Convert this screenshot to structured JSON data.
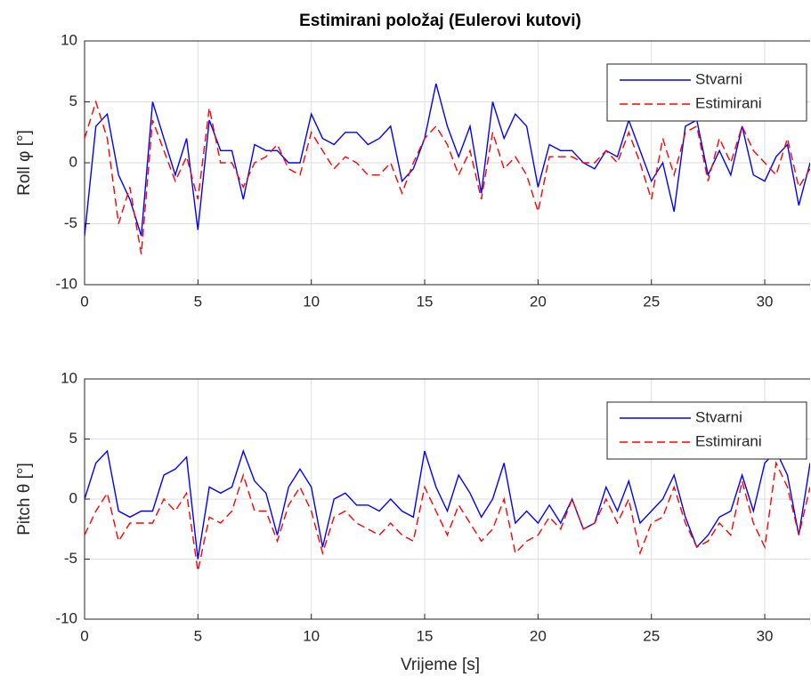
{
  "chart_data": [
    {
      "type": "line",
      "title": "Estimirani položaj (Eulerovi kutovi)",
      "y_label": "Roll φ [°]",
      "x": [
        0,
        0.5,
        1,
        1.5,
        2,
        2.5,
        3,
        3.5,
        4,
        4.5,
        5,
        5.5,
        6,
        6.5,
        7,
        7.5,
        8,
        8.5,
        9,
        9.5,
        10,
        10.5,
        11,
        11.5,
        12,
        12.5,
        13,
        13.5,
        14,
        14.5,
        15,
        15.5,
        16,
        16.5,
        17,
        17.5,
        18,
        18.5,
        19,
        19.5,
        20,
        20.5,
        21,
        21.5,
        22,
        22.5,
        23,
        23.5,
        24,
        24.5,
        25,
        25.5,
        26,
        26.5,
        27,
        27.5,
        28,
        28.5,
        29,
        29.5,
        30,
        30.5,
        31,
        31.5,
        32
      ],
      "series": [
        {
          "name": "Stvarni",
          "color": "#0000ff",
          "dash": false,
          "values": [
            -6,
            3,
            4,
            -1,
            -3,
            -6,
            5,
            2,
            -1,
            2,
            -5.5,
            3.5,
            1,
            1,
            -3,
            1.5,
            1,
            1,
            0,
            0,
            4,
            2,
            1.5,
            2.5,
            2.5,
            1.5,
            2,
            3,
            -1.5,
            -0.5,
            2,
            6.5,
            3,
            0.5,
            3,
            -2.5,
            5,
            2,
            4,
            3,
            -2,
            1.5,
            1,
            1,
            0,
            -0.5,
            1,
            0.5,
            3.5,
            1,
            -1.5,
            0,
            -4,
            3,
            3.5,
            -1,
            1,
            -1,
            3,
            -1,
            -1.5,
            0.5,
            1.5,
            -3.5,
            0
          ]
        },
        {
          "name": "Estimirani",
          "color": "#ff0000",
          "dash": true,
          "values": [
            2,
            5,
            2,
            -5,
            -2,
            -7.5,
            3.5,
            1,
            -1.5,
            0.5,
            -3,
            4.5,
            0,
            0,
            -2,
            0,
            0.5,
            1.5,
            -0.5,
            -1,
            2.5,
            1,
            -0.5,
            0.5,
            0,
            -1,
            -1,
            0,
            -2.5,
            0,
            2,
            3,
            1.5,
            -1,
            1,
            -3,
            2.5,
            -0.5,
            0.5,
            -1,
            -4,
            0.5,
            0.5,
            0.5,
            0,
            0,
            1,
            0,
            2.5,
            0,
            -3,
            2,
            -1,
            2.5,
            3,
            -1.5,
            2,
            0,
            3,
            1,
            0,
            -1,
            2,
            -2,
            -0.5
          ]
        }
      ],
      "xlim": [
        0,
        32
      ],
      "xticks": [
        0,
        5,
        10,
        15,
        20,
        25,
        30
      ],
      "ylim": [
        -10,
        10
      ],
      "yticks": [
        -10,
        -5,
        0,
        5,
        10
      ],
      "grid": true,
      "legend": "northeast"
    },
    {
      "type": "line",
      "y_label": "Pitch θ [°]",
      "x_label": "Vrijeme [s]",
      "x": [
        0,
        0.5,
        1,
        1.5,
        2,
        2.5,
        3,
        3.5,
        4,
        4.5,
        5,
        5.5,
        6,
        6.5,
        7,
        7.5,
        8,
        8.5,
        9,
        9.5,
        10,
        10.5,
        11,
        11.5,
        12,
        12.5,
        13,
        13.5,
        14,
        14.5,
        15,
        15.5,
        16,
        16.5,
        17,
        17.5,
        18,
        18.5,
        19,
        19.5,
        20,
        20.5,
        21,
        21.5,
        22,
        22.5,
        23,
        23.5,
        24,
        24.5,
        25,
        25.5,
        26,
        26.5,
        27,
        27.5,
        28,
        28.5,
        29,
        29.5,
        30,
        30.5,
        31,
        31.5,
        32
      ],
      "series": [
        {
          "name": "Stvarni",
          "color": "#0000ff",
          "dash": false,
          "values": [
            0,
            3,
            4,
            -1,
            -1.5,
            -1,
            -1,
            2,
            2.5,
            3.5,
            -5,
            1,
            0.5,
            1,
            4,
            1.5,
            0.5,
            -3,
            1,
            2.5,
            1,
            -4,
            0,
            0.5,
            -0.5,
            -0.5,
            -1,
            0,
            -1,
            -1.5,
            4,
            1,
            -1,
            2,
            0.5,
            -1.5,
            0,
            3,
            -2,
            -1,
            -2,
            -0.5,
            -2,
            0,
            -2.5,
            -2,
            1,
            -1,
            1.5,
            -2,
            -1,
            0,
            2,
            -1.5,
            -4,
            -3,
            -1.5,
            -1,
            2,
            -1,
            3,
            4,
            2,
            -3,
            3
          ]
        },
        {
          "name": "Estimirani",
          "color": "#ff0000",
          "dash": true,
          "values": [
            -3,
            -1,
            0.5,
            -3.5,
            -2,
            -2,
            -2,
            0,
            -1,
            0.5,
            -6,
            -1.5,
            -2,
            -1,
            2,
            -1,
            -1,
            -3.5,
            -0.5,
            1,
            -1,
            -4.5,
            -1.5,
            -1,
            -2,
            -2.5,
            -3,
            -2,
            -3,
            -3.5,
            1,
            -1,
            -3,
            -0.5,
            -2,
            -3.5,
            -2.5,
            0,
            -4.5,
            -3.5,
            -3,
            -1.5,
            -2.5,
            0,
            -2.5,
            -2,
            0,
            -2,
            0,
            -4.5,
            -2,
            -1.5,
            1,
            -2,
            -4,
            -3.5,
            -2,
            -3,
            1.5,
            -2,
            -4,
            3,
            1,
            -3,
            1
          ]
        }
      ],
      "xlim": [
        0,
        32
      ],
      "xticks": [
        0,
        5,
        10,
        15,
        20,
        25,
        30
      ],
      "ylim": [
        -10,
        10
      ],
      "yticks": [
        -10,
        -5,
        0,
        5,
        10
      ],
      "grid": true,
      "legend": "northeast"
    }
  ]
}
